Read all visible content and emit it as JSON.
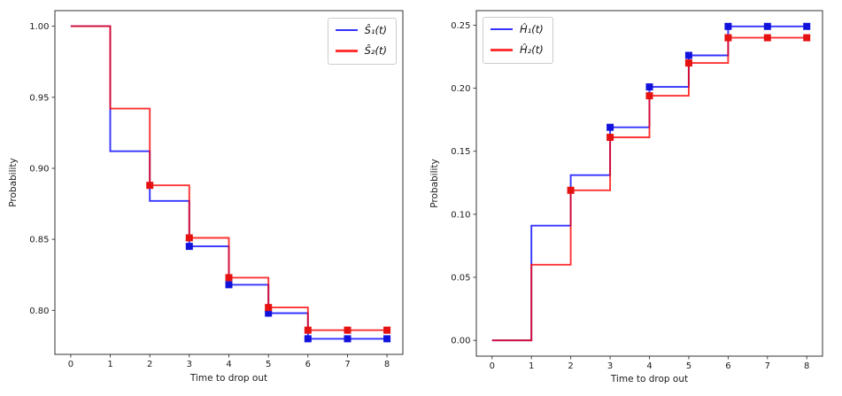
{
  "figure": {
    "background": "#ffffff",
    "xlabel": "Time to drop out",
    "ylabel": "Probability"
  },
  "colors": {
    "blue": {
      "line": "#0000ff",
      "marker": "#1212dd"
    },
    "red": {
      "line": "#ff0000",
      "marker": "#e61111"
    }
  },
  "chart_data": [
    {
      "type": "line",
      "step": "post",
      "title": "",
      "xlabel": "Time to drop out",
      "ylabel": "Probability",
      "x": [
        0,
        1,
        2,
        3,
        4,
        5,
        6,
        7,
        8
      ],
      "xlim": [
        -0.4,
        8.4
      ],
      "ylim": [
        0.769,
        1.011
      ],
      "xticks": [
        0,
        1,
        2,
        3,
        4,
        5,
        6,
        7,
        8
      ],
      "yticks": [
        1.0,
        0.95,
        0.9,
        0.85,
        0.8
      ],
      "grid": false,
      "legend_position": "top-right",
      "series": [
        {
          "name": "Ŝ₁(t)",
          "color": "blue",
          "values": [
            1.0,
            0.912,
            0.877,
            0.845,
            0.818,
            0.798,
            0.78,
            0.78,
            0.78
          ],
          "marker": "square",
          "marker_times": [
            3,
            4,
            5,
            6,
            7,
            8
          ]
        },
        {
          "name": "Ŝ₂(t)",
          "color": "red",
          "values": [
            1.0,
            0.942,
            0.888,
            0.851,
            0.823,
            0.802,
            0.786,
            0.786,
            0.786
          ],
          "marker": "square",
          "marker_times": [
            2,
            3,
            4,
            5,
            6,
            7,
            8
          ]
        }
      ]
    },
    {
      "type": "line",
      "step": "post",
      "title": "",
      "xlabel": "Time to drop out",
      "ylabel": "Probability",
      "x": [
        0,
        1,
        2,
        3,
        4,
        5,
        6,
        7,
        8
      ],
      "xlim": [
        -0.4,
        8.4
      ],
      "ylim": [
        -0.0125,
        0.2615
      ],
      "xticks": [
        0,
        1,
        2,
        3,
        4,
        5,
        6,
        7,
        8
      ],
      "yticks": [
        0.25,
        0.2,
        0.15,
        0.1,
        0.05,
        0.0
      ],
      "grid": false,
      "legend_position": "top-left",
      "series": [
        {
          "name": "Ĥ₁(t)",
          "color": "blue",
          "values": [
            0.0,
            0.091,
            0.131,
            0.169,
            0.201,
            0.226,
            0.249,
            0.249,
            0.249
          ],
          "marker": "square",
          "marker_times": [
            3,
            4,
            5,
            6,
            7,
            8
          ]
        },
        {
          "name": "Ĥ₂(t)",
          "color": "red",
          "values": [
            0.0,
            0.06,
            0.119,
            0.161,
            0.194,
            0.22,
            0.24,
            0.24,
            0.24
          ],
          "marker": "square",
          "marker_times": [
            2,
            3,
            4,
            5,
            6,
            7,
            8
          ]
        }
      ]
    }
  ]
}
